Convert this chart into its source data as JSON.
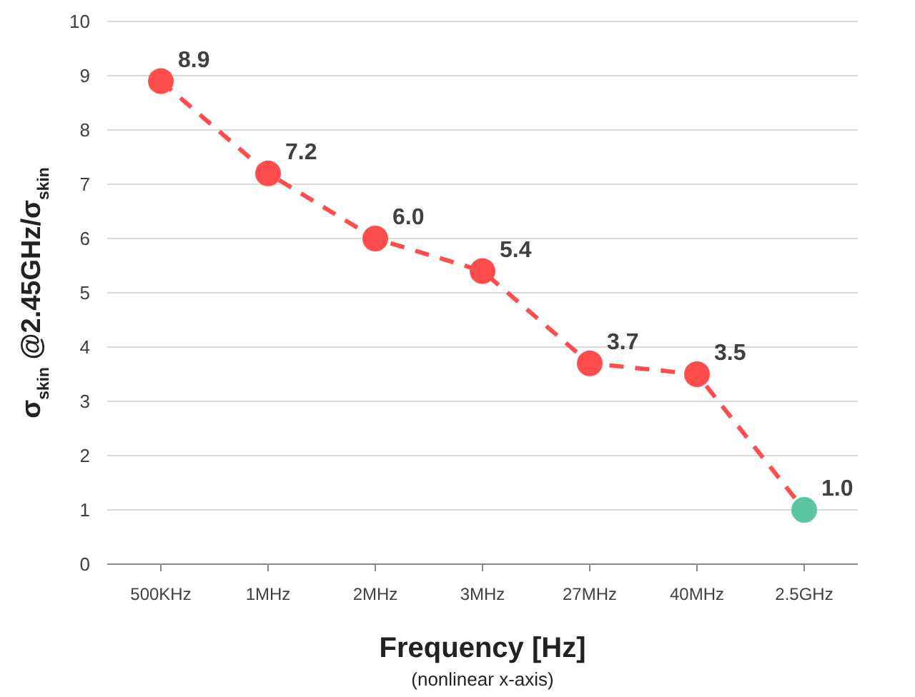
{
  "chart_data": {
    "type": "line",
    "xlabel": "Frequency [Hz]",
    "ylabel": "σ$_{skin}$ @2.45GHz/σ$_{skin}$",
    "annotations": [
      "(nonlinear x-axis)"
    ],
    "categories": [
      "500KHz",
      "1MHz",
      "2MHz",
      "3MHz",
      "27MHz",
      "40MHz",
      "2.5GHz"
    ],
    "series": [
      {
        "color": "#ff4d4d",
        "colors": [
          "#ff4d4d",
          "#ff4d4d",
          "#ff4d4d",
          "#ff4d4d",
          "#ff4d4d",
          "#ff4d4d",
          "#5cc6a0"
        ],
        "values": [
          8.9,
          7.2,
          6.0,
          5.4,
          3.7,
          3.5,
          1.0
        ],
        "value_labels": [
          "8.9",
          "7.2",
          "6.0",
          "5.4",
          "3.7",
          "3.5",
          "1.0"
        ]
      }
    ],
    "ylim": [
      0,
      10
    ],
    "yticks": [
      0,
      1,
      2,
      3,
      4,
      5,
      6,
      7,
      8,
      9,
      10
    ],
    "grid": "y",
    "marker": "circle",
    "line_style": "dashed"
  }
}
